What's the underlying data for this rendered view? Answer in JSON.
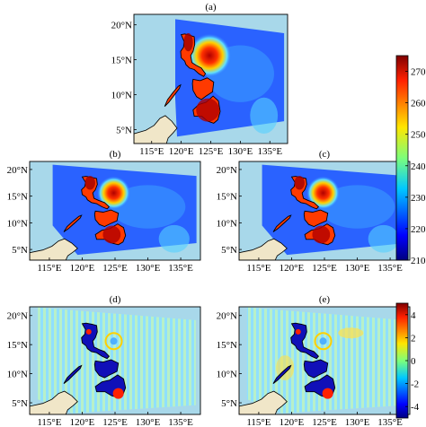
{
  "panels": [
    {
      "id": "a",
      "label": "(a)",
      "kind": "tb"
    },
    {
      "id": "b",
      "label": "(b)",
      "kind": "tb"
    },
    {
      "id": "c",
      "label": "(c)",
      "kind": "tb"
    },
    {
      "id": "d",
      "label": "(d)",
      "kind": "diff"
    },
    {
      "id": "e",
      "label": "(e)",
      "kind": "diff"
    }
  ],
  "lat_ticks": [
    "5°N",
    "10°N",
    "15°N",
    "20°N"
  ],
  "lon_ticks": [
    "115°E",
    "120°E",
    "125°E",
    "130°E",
    "135°E"
  ],
  "colorbar_top": {
    "ticks": [
      "210",
      "220",
      "230",
      "240",
      "250",
      "260",
      "270"
    ],
    "range": [
      210,
      275
    ]
  },
  "colorbar_bottom": {
    "ticks": [
      "-4",
      "-2",
      "0",
      "2",
      "4"
    ],
    "range": [
      -5,
      5
    ]
  },
  "colors": {
    "ocean": "#a8d8ea",
    "land": "#f0e6c8",
    "coast": "#000000"
  }
}
